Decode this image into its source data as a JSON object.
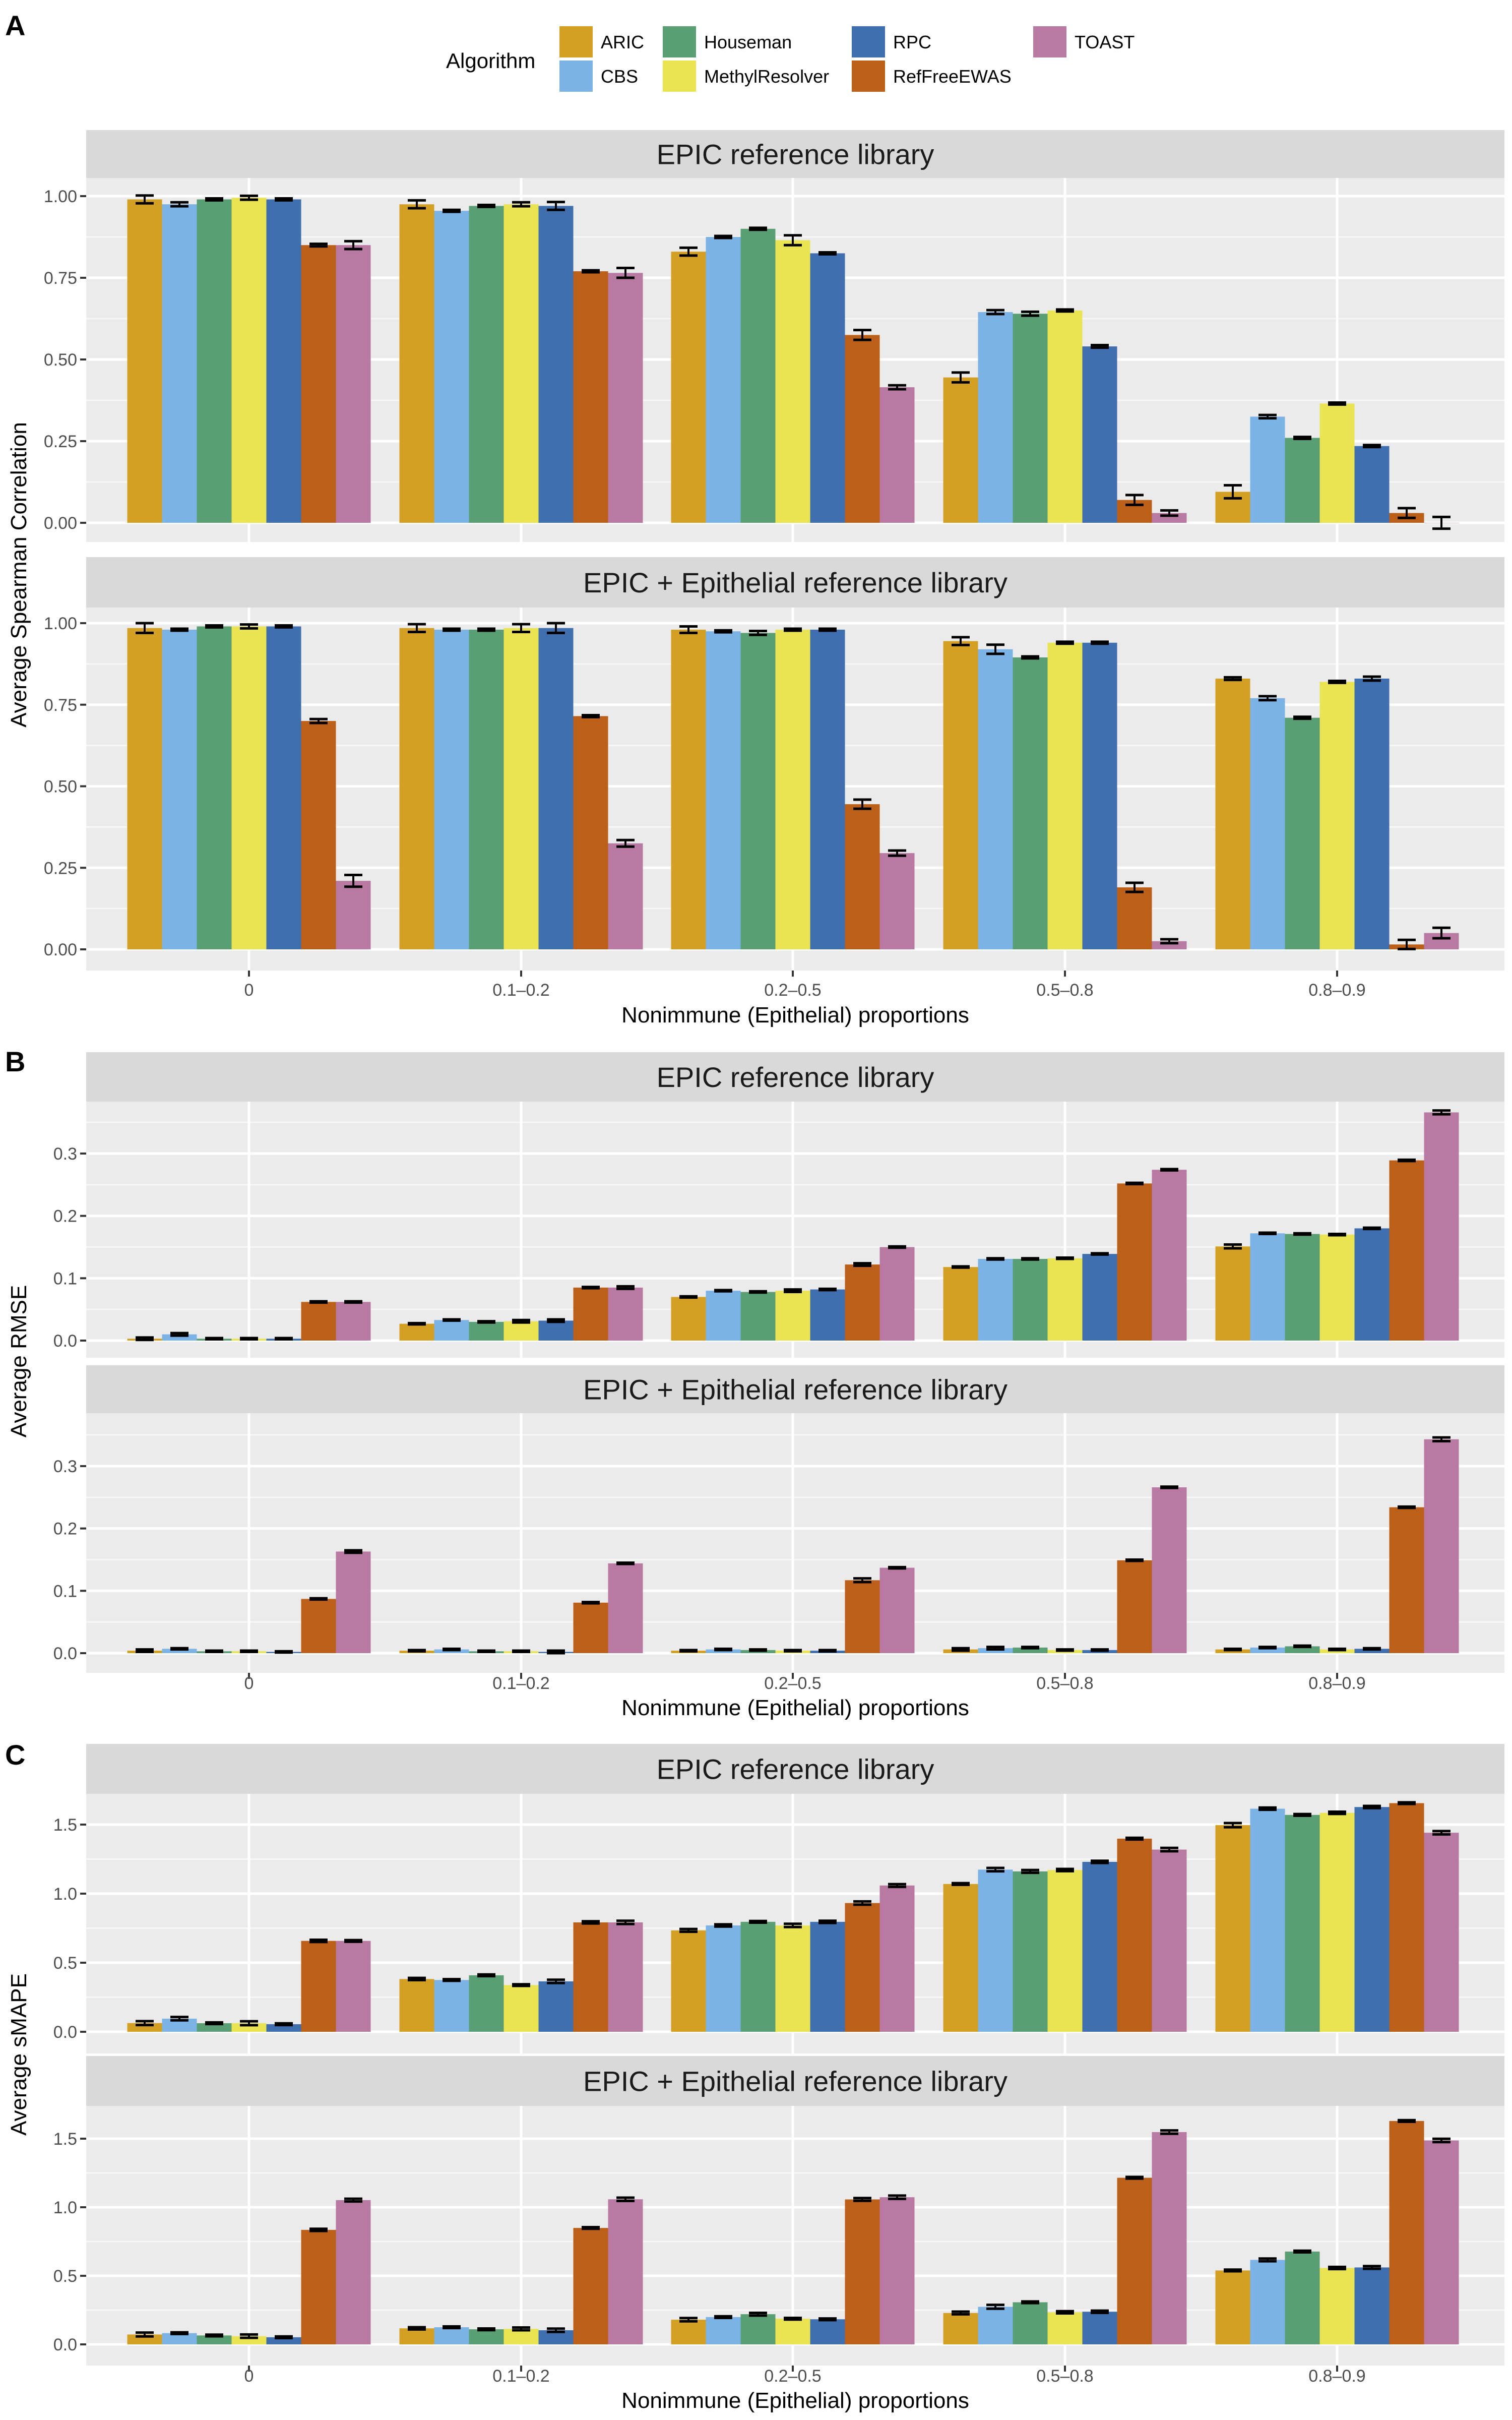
{
  "legend": {
    "title": "Algorithm",
    "items": [
      {
        "name": "ARIC",
        "color": "#D4A024"
      },
      {
        "name": "CBS",
        "color": "#7BB3E6"
      },
      {
        "name": "Houseman",
        "color": "#5A9E73"
      },
      {
        "name": "MethylResolver",
        "color": "#EAE352"
      },
      {
        "name": "RPC",
        "color": "#3F6FAE"
      },
      {
        "name": "RefFreeEWAS",
        "color": "#BC5F18"
      },
      {
        "name": "TOAST",
        "color": "#B879A3"
      }
    ]
  },
  "panels": [
    {
      "letter": "A",
      "xlabel": "Nonimmune (Epithelial) proportions",
      "ylabel": "Average Spearman Correlation"
    },
    {
      "letter": "B",
      "xlabel": "Nonimmune (Epithelial) proportions",
      "ylabel": "Average RMSE"
    },
    {
      "letter": "C",
      "xlabel": "Nonimmune (Epithelial) proportions",
      "ylabel": "Average sMAPE"
    }
  ],
  "chart_data": [
    {
      "type": "bar",
      "panel": "A",
      "title": "EPIC reference library",
      "xlabel": "",
      "ylabel": "Average Spearman Correlation",
      "categories": [
        "0",
        "0.1-0.2",
        "0.2-0.5",
        "0.5-0.8",
        "0.8-0.9"
      ],
      "yticks": [
        "0.00",
        "0.25",
        "0.50",
        "0.75",
        "1.00"
      ],
      "ytick_values": [
        0,
        0.25,
        0.5,
        0.75,
        1.0
      ],
      "ylim": [
        -0.06,
        1.06
      ],
      "grid": true,
      "error_bars": true,
      "series": [
        {
          "name": "ARIC",
          "values": [
            0.99,
            0.975,
            0.83,
            0.445,
            0.095
          ],
          "err": [
            0.012,
            0.012,
            0.012,
            0.015,
            0.02
          ]
        },
        {
          "name": "CBS",
          "values": [
            0.975,
            0.955,
            0.875,
            0.645,
            0.325
          ],
          "err": [
            0.006,
            0.003,
            0.003,
            0.006,
            0.005
          ]
        },
        {
          "name": "Houseman",
          "values": [
            0.99,
            0.97,
            0.9,
            0.64,
            0.26
          ],
          "err": [
            0.003,
            0.003,
            0.003,
            0.006,
            0.003
          ]
        },
        {
          "name": "MethylResolver",
          "values": [
            0.995,
            0.975,
            0.865,
            0.65,
            0.365
          ],
          "err": [
            0.006,
            0.006,
            0.015,
            0.003,
            0.003
          ]
        },
        {
          "name": "RPC",
          "values": [
            0.99,
            0.97,
            0.825,
            0.54,
            0.235
          ],
          "err": [
            0.003,
            0.012,
            0.003,
            0.004,
            0.003
          ]
        },
        {
          "name": "RefFreeEWAS",
          "values": [
            0.85,
            0.77,
            0.575,
            0.07,
            0.03
          ],
          "err": [
            0.004,
            0.003,
            0.015,
            0.015,
            0.015
          ]
        },
        {
          "name": "TOAST",
          "values": [
            0.85,
            0.765,
            0.415,
            0.03,
            0.0
          ],
          "err": [
            0.012,
            0.015,
            0.006,
            0.008,
            0.018
          ]
        }
      ]
    },
    {
      "type": "bar",
      "panel": "A",
      "title": "EPIC + Epithelial reference library",
      "xlabel": "Nonimmune (Epithelial) proportions",
      "ylabel": "Average Spearman Correlation",
      "categories": [
        "0",
        "0.1-0.2",
        "0.2-0.5",
        "0.5-0.8",
        "0.8-0.9"
      ],
      "yticks": [
        "0.00",
        "0.25",
        "0.50",
        "0.75",
        "1.00"
      ],
      "ytick_values": [
        0,
        0.25,
        0.5,
        0.75,
        1.0
      ],
      "ylim": [
        -0.06,
        1.06
      ],
      "grid": true,
      "error_bars": true,
      "series": [
        {
          "name": "ARIC",
          "values": [
            0.985,
            0.985,
            0.98,
            0.945,
            0.83
          ],
          "err": [
            0.015,
            0.012,
            0.01,
            0.012,
            0.004
          ]
        },
        {
          "name": "CBS",
          "values": [
            0.98,
            0.98,
            0.975,
            0.92,
            0.77
          ],
          "err": [
            0.003,
            0.003,
            0.003,
            0.014,
            0.006
          ]
        },
        {
          "name": "Houseman",
          "values": [
            0.99,
            0.98,
            0.97,
            0.895,
            0.71
          ],
          "err": [
            0.003,
            0.003,
            0.006,
            0.003,
            0.003
          ]
        },
        {
          "name": "MethylResolver",
          "values": [
            0.99,
            0.985,
            0.98,
            0.94,
            0.82
          ],
          "err": [
            0.006,
            0.012,
            0.003,
            0.003,
            0.003
          ]
        },
        {
          "name": "RPC",
          "values": [
            0.99,
            0.985,
            0.98,
            0.94,
            0.83
          ],
          "err": [
            0.003,
            0.015,
            0.003,
            0.003,
            0.006
          ]
        },
        {
          "name": "RefFreeEWAS",
          "values": [
            0.7,
            0.715,
            0.445,
            0.19,
            0.015
          ],
          "err": [
            0.006,
            0.003,
            0.014,
            0.014,
            0.014
          ]
        },
        {
          "name": "TOAST",
          "values": [
            0.21,
            0.325,
            0.295,
            0.025,
            0.05
          ],
          "err": [
            0.018,
            0.01,
            0.008,
            0.006,
            0.016
          ]
        }
      ]
    },
    {
      "type": "bar",
      "panel": "B",
      "title": "EPIC reference library",
      "xlabel": "",
      "ylabel": "Average RMSE",
      "categories": [
        "0",
        "0.1-0.2",
        "0.2-0.5",
        "0.5-0.8",
        "0.8-0.9"
      ],
      "yticks": [
        "0.0",
        "0.1",
        "0.2",
        "0.3"
      ],
      "ytick_values": [
        0,
        0.1,
        0.2,
        0.3
      ],
      "ylim": [
        -0.018,
        0.385
      ],
      "grid": true,
      "error_bars": true,
      "series": [
        {
          "name": "ARIC",
          "values": [
            0.003,
            0.027,
            0.07,
            0.118,
            0.151
          ],
          "err": [
            0.002,
            0.001,
            0.001,
            0.001,
            0.003
          ]
        },
        {
          "name": "CBS",
          "values": [
            0.01,
            0.033,
            0.08,
            0.131,
            0.172
          ],
          "err": [
            0.002,
            0.001,
            0.001,
            0.001,
            0.001
          ]
        },
        {
          "name": "Houseman",
          "values": [
            0.003,
            0.03,
            0.078,
            0.131,
            0.171
          ],
          "err": [
            0.001,
            0.001,
            0.001,
            0.001,
            0.001
          ]
        },
        {
          "name": "MethylResolver",
          "values": [
            0.003,
            0.031,
            0.08,
            0.132,
            0.17
          ],
          "err": [
            0.001,
            0.002,
            0.002,
            0.001,
            0.001
          ]
        },
        {
          "name": "RPC",
          "values": [
            0.003,
            0.032,
            0.082,
            0.139,
            0.18
          ],
          "err": [
            0.001,
            0.002,
            0.001,
            0.001,
            0.001
          ]
        },
        {
          "name": "RefFreeEWAS",
          "values": [
            0.062,
            0.085,
            0.122,
            0.252,
            0.289
          ],
          "err": [
            0.001,
            0.001,
            0.002,
            0.001,
            0.001
          ]
        },
        {
          "name": "TOAST",
          "values": [
            0.062,
            0.085,
            0.15,
            0.274,
            0.366
          ],
          "err": [
            0.001,
            0.002,
            0.001,
            0.001,
            0.003
          ]
        }
      ]
    },
    {
      "type": "bar",
      "panel": "B",
      "title": "EPIC + Epithelial reference library",
      "xlabel": "Nonimmune (Epithelial) proportions",
      "ylabel": "Average RMSE",
      "categories": [
        "0",
        "0.1-0.2",
        "0.2-0.5",
        "0.5-0.8",
        "0.8-0.9"
      ],
      "yticks": [
        "0.0",
        "0.1",
        "0.2",
        "0.3"
      ],
      "ytick_values": [
        0,
        0.1,
        0.2,
        0.3
      ],
      "ylim": [
        -0.018,
        0.385
      ],
      "grid": true,
      "error_bars": true,
      "series": [
        {
          "name": "ARIC",
          "values": [
            0.004,
            0.004,
            0.004,
            0.006,
            0.006
          ],
          "err": [
            0.002,
            0.001,
            0.001,
            0.002,
            0.001
          ]
        },
        {
          "name": "CBS",
          "values": [
            0.007,
            0.006,
            0.006,
            0.008,
            0.009
          ],
          "err": [
            0.001,
            0.001,
            0.001,
            0.002,
            0.001
          ]
        },
        {
          "name": "Houseman",
          "values": [
            0.003,
            0.003,
            0.005,
            0.009,
            0.011
          ],
          "err": [
            0.001,
            0.001,
            0.001,
            0.001,
            0.001
          ]
        },
        {
          "name": "MethylResolver",
          "values": [
            0.003,
            0.003,
            0.004,
            0.005,
            0.006
          ],
          "err": [
            0.001,
            0.001,
            0.001,
            0.001,
            0.001
          ]
        },
        {
          "name": "RPC",
          "values": [
            0.002,
            0.002,
            0.004,
            0.005,
            0.007
          ],
          "err": [
            0.001,
            0.002,
            0.001,
            0.001,
            0.001
          ]
        },
        {
          "name": "RefFreeEWAS",
          "values": [
            0.087,
            0.081,
            0.117,
            0.149,
            0.234
          ],
          "err": [
            0.001,
            0.001,
            0.003,
            0.001,
            0.001
          ]
        },
        {
          "name": "TOAST",
          "values": [
            0.163,
            0.144,
            0.137,
            0.266,
            0.343
          ],
          "err": [
            0.002,
            0.001,
            0.001,
            0.001,
            0.003
          ]
        }
      ]
    },
    {
      "type": "bar",
      "panel": "C",
      "title": "EPIC reference library",
      "xlabel": "",
      "ylabel": "Average sMAPE",
      "categories": [
        "0",
        "0.1-0.2",
        "0.2-0.5",
        "0.5-0.8",
        "0.8-0.9"
      ],
      "yticks": [
        "0.0",
        "0.5",
        "1.0",
        "1.5"
      ],
      "ytick_values": [
        0,
        0.5,
        1.0,
        1.5
      ],
      "ylim": [
        -0.085,
        1.74
      ],
      "grid": true,
      "error_bars": true,
      "series": [
        {
          "name": "ARIC",
          "values": [
            0.063,
            0.382,
            0.734,
            1.07,
            1.496
          ],
          "err": [
            0.014,
            0.008,
            0.01,
            0.006,
            0.015
          ]
        },
        {
          "name": "CBS",
          "values": [
            0.095,
            0.375,
            0.77,
            1.174,
            1.615
          ],
          "err": [
            0.012,
            0.006,
            0.008,
            0.012,
            0.008
          ]
        },
        {
          "name": "Houseman",
          "values": [
            0.062,
            0.409,
            0.796,
            1.161,
            1.57
          ],
          "err": [
            0.006,
            0.006,
            0.006,
            0.01,
            0.006
          ]
        },
        {
          "name": "MethylResolver",
          "values": [
            0.062,
            0.338,
            0.77,
            1.171,
            1.585
          ],
          "err": [
            0.014,
            0.006,
            0.012,
            0.008,
            0.008
          ]
        },
        {
          "name": "RPC",
          "values": [
            0.055,
            0.365,
            0.796,
            1.23,
            1.627
          ],
          "err": [
            0.006,
            0.012,
            0.008,
            0.008,
            0.008
          ]
        },
        {
          "name": "RefFreeEWAS",
          "values": [
            0.658,
            0.792,
            0.932,
            1.398,
            1.655
          ],
          "err": [
            0.008,
            0.008,
            0.012,
            0.006,
            0.006
          ]
        },
        {
          "name": "TOAST",
          "values": [
            0.658,
            0.792,
            1.059,
            1.319,
            1.441
          ],
          "err": [
            0.006,
            0.012,
            0.01,
            0.012,
            0.012
          ]
        }
      ]
    },
    {
      "type": "bar",
      "panel": "C",
      "title": "EPIC + Epithelial reference library",
      "xlabel": "Nonimmune (Epithelial) proportions",
      "ylabel": "Average sMAPE",
      "categories": [
        "0",
        "0.1-0.2",
        "0.2-0.5",
        "0.5-0.8",
        "0.8-0.9"
      ],
      "yticks": [
        "0.0",
        "0.5",
        "1.0",
        "1.5"
      ],
      "ytick_values": [
        0,
        0.5,
        1.0,
        1.5
      ],
      "ylim": [
        -0.085,
        1.74
      ],
      "grid": true,
      "error_bars": true,
      "series": [
        {
          "name": "ARIC",
          "values": [
            0.072,
            0.117,
            0.18,
            0.229,
            0.539
          ],
          "err": [
            0.014,
            0.008,
            0.012,
            0.01,
            0.006
          ]
        },
        {
          "name": "CBS",
          "values": [
            0.082,
            0.125,
            0.199,
            0.274,
            0.616
          ],
          "err": [
            0.006,
            0.006,
            0.006,
            0.014,
            0.01
          ]
        },
        {
          "name": "Houseman",
          "values": [
            0.065,
            0.11,
            0.22,
            0.307,
            0.677
          ],
          "err": [
            0.006,
            0.006,
            0.01,
            0.006,
            0.006
          ]
        },
        {
          "name": "MethylResolver",
          "values": [
            0.06,
            0.113,
            0.187,
            0.234,
            0.557
          ],
          "err": [
            0.012,
            0.01,
            0.006,
            0.008,
            0.008
          ]
        },
        {
          "name": "RPC",
          "values": [
            0.052,
            0.103,
            0.183,
            0.238,
            0.561
          ],
          "err": [
            0.006,
            0.012,
            0.006,
            0.008,
            0.01
          ]
        },
        {
          "name": "RefFreeEWAS",
          "values": [
            0.835,
            0.849,
            1.057,
            1.215,
            1.629
          ],
          "err": [
            0.008,
            0.006,
            0.01,
            0.006,
            0.006
          ]
        },
        {
          "name": "TOAST",
          "values": [
            1.052,
            1.058,
            1.073,
            1.548,
            1.487
          ],
          "err": [
            0.01,
            0.012,
            0.012,
            0.012,
            0.012
          ]
        }
      ]
    }
  ]
}
